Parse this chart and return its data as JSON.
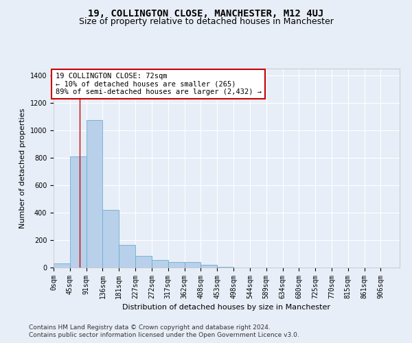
{
  "title": "19, COLLINGTON CLOSE, MANCHESTER, M12 4UJ",
  "subtitle": "Size of property relative to detached houses in Manchester",
  "xlabel": "Distribution of detached houses by size in Manchester",
  "ylabel": "Number of detached properties",
  "footer_line1": "Contains HM Land Registry data © Crown copyright and database right 2024.",
  "footer_line2": "Contains public sector information licensed under the Open Government Licence v3.0.",
  "bin_labels": [
    "0sqm",
    "45sqm",
    "91sqm",
    "136sqm",
    "181sqm",
    "227sqm",
    "272sqm",
    "317sqm",
    "362sqm",
    "408sqm",
    "453sqm",
    "498sqm",
    "544sqm",
    "589sqm",
    "634sqm",
    "680sqm",
    "725sqm",
    "770sqm",
    "815sqm",
    "861sqm",
    "906sqm"
  ],
  "bar_values": [
    30,
    810,
    1075,
    420,
    165,
    85,
    55,
    40,
    40,
    20,
    5,
    0,
    0,
    0,
    0,
    0,
    0,
    0,
    0,
    0
  ],
  "bar_color": "#b8d0ea",
  "bar_edge_color": "#6aaed6",
  "annotation_text": "19 COLLINGTON CLOSE: 72sqm\n← 10% of detached houses are smaller (265)\n89% of semi-detached houses are larger (2,432) →",
  "annotation_box_color": "#ffffff",
  "annotation_box_edge_color": "#cc0000",
  "vline_x": 72,
  "vline_color": "#cc0000",
  "ylim": [
    0,
    1450
  ],
  "xlim": [
    0,
    952
  ],
  "bin_width": 45,
  "background_color": "#e8eef7",
  "plot_background_color": "#e8eef7",
  "grid_color": "#ffffff",
  "title_fontsize": 10,
  "subtitle_fontsize": 9,
  "axis_label_fontsize": 8,
  "tick_fontsize": 7,
  "annotation_fontsize": 7.5,
  "footer_fontsize": 6.5,
  "ytick_values": [
    0,
    200,
    400,
    600,
    800,
    1000,
    1200,
    1400
  ]
}
